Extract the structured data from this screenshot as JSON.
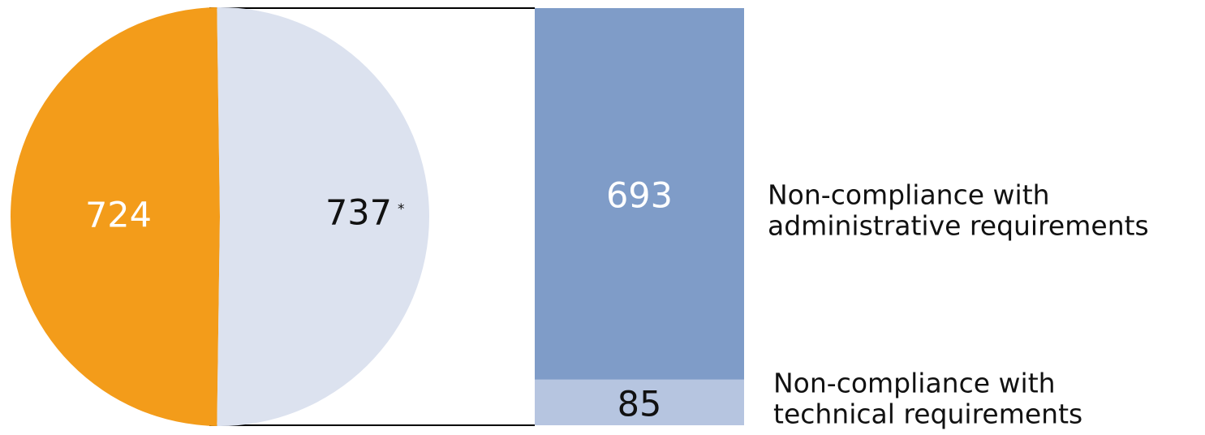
{
  "chart_data": {
    "type": "bar-of-pie",
    "pie": {
      "slices": [
        {
          "value": 724,
          "label": "724",
          "color": "#f39c1a",
          "label_color": "#ffffff"
        },
        {
          "value": 737,
          "label": "737",
          "footnote_marker": "*",
          "color": "#dce2ef",
          "label_color": "#111111"
        }
      ]
    },
    "breakdown_bar": {
      "segments": [
        {
          "name": "Non-compliance with administrative requirements",
          "name_lines": [
            "Non-compliance with",
            "administrative requirements"
          ],
          "value": 693,
          "label": "693",
          "color": "#7f9cc8",
          "label_color": "#ffffff"
        },
        {
          "name": "Non-compliance with technical requirements",
          "name_lines": [
            "Non-compliance with",
            "technical requirements"
          ],
          "value": 85,
          "label": "85",
          "color": "#b6c5e0",
          "label_color": "#111111"
        }
      ]
    }
  }
}
